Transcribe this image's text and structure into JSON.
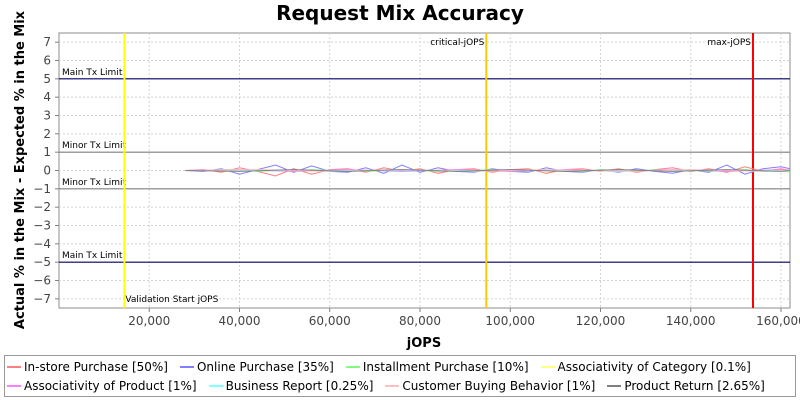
{
  "chart_data": {
    "type": "line",
    "title": "Request Mix Accuracy",
    "xlabel": "jOPS",
    "ylabel": "Actual % in the Mix - Expected % in the Mix",
    "xlim": [
      0,
      162000
    ],
    "ylim": [
      -7.5,
      7.5
    ],
    "x_ticks": [
      20000,
      40000,
      60000,
      80000,
      100000,
      120000,
      140000,
      160000
    ],
    "x_tick_labels": [
      "20,000",
      "40,000",
      "60,000",
      "80,000",
      "100,000",
      "120,000",
      "140,000",
      "160,000"
    ],
    "y_ticks": [
      7,
      6,
      5,
      4,
      3,
      2,
      1,
      0,
      -1,
      -2,
      -3,
      -4,
      -5,
      -6,
      -7
    ],
    "y_tick_labels": [
      "7",
      "6",
      "5",
      "4",
      "3",
      "2",
      "1",
      "0",
      "−1",
      "−2",
      "−3",
      "−4",
      "−5",
      "−6",
      "−7"
    ],
    "grid": true,
    "legend_position": "bottom",
    "horizontal_lines": [
      {
        "label": "Main Tx Limit",
        "y": 5,
        "color": "#000066"
      },
      {
        "label": "Minor Tx Limit",
        "y": 1,
        "color": "#808080"
      },
      {
        "label": "Minor Tx Limit",
        "y": -1,
        "color": "#808080"
      },
      {
        "label": "Main Tx Limit",
        "y": -5,
        "color": "#000066"
      }
    ],
    "vertical_lines": [
      {
        "label": "Validation Start jOPS",
        "x": 14500,
        "color": "#ffff00"
      },
      {
        "label": "critical-jOPS",
        "x": 94700,
        "color": "#ffc800"
      },
      {
        "label": "max-jOPS",
        "x": 153800,
        "color": "#ff0000"
      }
    ],
    "series": [
      {
        "name": "In-store Purchase [50%]",
        "color": "#ff8080",
        "x": [
          28000,
          32000,
          36000,
          40000,
          44000,
          48000,
          52000,
          56000,
          60000,
          64000,
          68000,
          72000,
          76000,
          80000,
          84000,
          88000,
          92000,
          96000,
          100000,
          104000,
          108000,
          112000,
          116000,
          120000,
          124000,
          128000,
          132000,
          136000,
          140000,
          144000,
          148000,
          152000,
          156000,
          160000,
          162000
        ],
        "values": [
          0,
          0.05,
          -0.1,
          0.15,
          -0.05,
          -0.3,
          0.1,
          -0.2,
          0.05,
          0.1,
          -0.1,
          0.15,
          -0.05,
          0.1,
          -0.15,
          0.05,
          0.1,
          -0.1,
          0.05,
          0.1,
          -0.15,
          0.05,
          0.1,
          -0.05,
          0.1,
          -0.1,
          0.05,
          0.15,
          -0.05,
          0.1,
          -0.1,
          0.2,
          -0.05,
          0.1,
          0
        ]
      },
      {
        "name": "Online Purchase [35%]",
        "color": "#8080ff",
        "x": [
          28000,
          32000,
          36000,
          40000,
          44000,
          48000,
          52000,
          56000,
          60000,
          64000,
          68000,
          72000,
          76000,
          80000,
          84000,
          88000,
          92000,
          96000,
          100000,
          104000,
          108000,
          112000,
          116000,
          120000,
          124000,
          128000,
          132000,
          136000,
          140000,
          144000,
          148000,
          152000,
          156000,
          160000,
          162000
        ],
        "values": [
          0,
          -0.05,
          0.1,
          -0.2,
          0.05,
          0.3,
          -0.1,
          0.25,
          -0.05,
          -0.1,
          0.15,
          -0.15,
          0.3,
          -0.1,
          0.15,
          -0.05,
          -0.1,
          0.1,
          -0.05,
          -0.1,
          0.15,
          -0.05,
          -0.1,
          0.05,
          -0.1,
          0.1,
          -0.05,
          -0.15,
          0.05,
          -0.1,
          0.3,
          -0.2,
          0.1,
          0.2,
          0.1
        ]
      },
      {
        "name": "Installment Purchase [10%]",
        "color": "#80ff80",
        "x": [
          28000,
          32000,
          36000,
          40000,
          44000,
          48000,
          52000,
          56000,
          60000,
          64000,
          68000,
          72000,
          76000,
          80000,
          84000,
          88000,
          92000,
          96000,
          100000,
          104000,
          108000,
          112000,
          116000,
          120000,
          124000,
          128000,
          132000,
          136000,
          140000,
          144000,
          148000,
          152000,
          156000,
          160000,
          162000
        ],
        "values": [
          0,
          0,
          0.05,
          0.05,
          -0.05,
          0,
          -0.05,
          0.05,
          0,
          0.05,
          -0.05,
          0,
          0.05,
          0,
          -0.05,
          0.05,
          0,
          0.05,
          -0.05,
          0,
          0.05,
          0,
          -0.05,
          0.05,
          0,
          -0.05,
          0.05,
          0,
          0.05,
          -0.05,
          0,
          0.05,
          -0.05,
          0,
          -0.1
        ]
      },
      {
        "name": "Associativity of Category [0.1%]",
        "color": "#ffff80",
        "x": [
          28000,
          60000,
          100000,
          140000,
          162000
        ],
        "values": [
          0,
          0,
          0,
          0,
          0
        ]
      },
      {
        "name": "Associativity of Product [1%]",
        "color": "#ff80ff",
        "x": [
          28000,
          40000,
          52000,
          64000,
          76000,
          88000,
          100000,
          112000,
          124000,
          136000,
          148000,
          160000,
          162000
        ],
        "values": [
          0,
          0.05,
          -0.05,
          0.05,
          -0.05,
          0.05,
          -0.05,
          0.05,
          -0.05,
          0.05,
          -0.05,
          0.05,
          0
        ]
      },
      {
        "name": "Business Report [0.25%]",
        "color": "#80ffff",
        "x": [
          28000,
          60000,
          100000,
          140000,
          162000
        ],
        "values": [
          0,
          0,
          0,
          0,
          0
        ]
      },
      {
        "name": "Customer Buying Behavior [1%]",
        "color": "#ffc0c0",
        "x": [
          28000,
          44000,
          60000,
          76000,
          92000,
          108000,
          124000,
          140000,
          156000,
          162000
        ],
        "values": [
          0,
          0.05,
          -0.05,
          0.05,
          -0.05,
          0.05,
          -0.05,
          0.05,
          -0.05,
          0
        ]
      },
      {
        "name": "Product Return [2.65%]",
        "color": "#808080",
        "x": [
          28000,
          40000,
          52000,
          64000,
          76000,
          88000,
          100000,
          112000,
          124000,
          136000,
          148000,
          160000,
          162000
        ],
        "values": [
          0,
          -0.05,
          0.05,
          -0.05,
          0.05,
          -0.05,
          0.05,
          -0.05,
          0.05,
          -0.05,
          0.05,
          -0.05,
          0
        ]
      }
    ]
  }
}
